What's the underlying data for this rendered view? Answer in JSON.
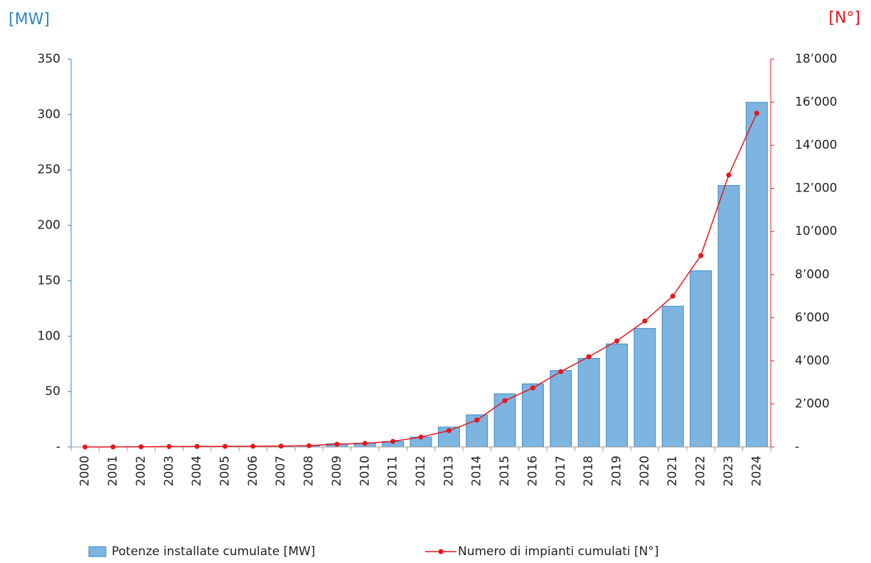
{
  "chart_data": {
    "type": "bar_line",
    "y_label": "[MW]",
    "y2_label": "[N°]",
    "categories": [
      "2000",
      "2001",
      "2002",
      "2003",
      "2004",
      "2005",
      "2006",
      "2007",
      "2008",
      "2009",
      "2010",
      "2011",
      "2012",
      "2013",
      "2014",
      "2015",
      "2016",
      "2017",
      "2018",
      "2019",
      "2020",
      "2021",
      "2022",
      "2023",
      "2024"
    ],
    "series": [
      {
        "name": "Potenze installate cumulate [MW]",
        "type": "bar",
        "color": "#7db4e0",
        "edge_color": "#3f8cc8",
        "values": [
          0,
          0,
          0,
          0,
          0.3,
          0.5,
          0.5,
          0.5,
          1,
          3,
          3.5,
          5,
          9,
          18,
          29,
          48,
          57,
          69,
          80,
          93,
          107,
          127,
          159,
          236,
          311
        ]
      },
      {
        "name": "Numero di impianti cumulati [N°]",
        "type": "line",
        "axis": "y2",
        "color": "#e8141b",
        "values": [
          0,
          5,
          10,
          20,
          25,
          30,
          35,
          40,
          60,
          130,
          170,
          260,
          460,
          760,
          1250,
          2150,
          2740,
          3500,
          4190,
          4920,
          5850,
          7000,
          8880,
          12620,
          15490
        ]
      }
    ],
    "ylim": [
      0,
      350
    ],
    "yticks": [
      {
        "value": 0,
        "label": "-"
      },
      50,
      100,
      150,
      200,
      250,
      300,
      350
    ],
    "y2lim": [
      0,
      18000
    ],
    "y2ticks": [
      {
        "value": 0,
        "label": "-"
      },
      {
        "value": 2000,
        "label": "2’000"
      },
      {
        "value": 4000,
        "label": "4’000"
      },
      {
        "value": 6000,
        "label": "6’000"
      },
      {
        "value": 8000,
        "label": "8’000"
      },
      {
        "value": 10000,
        "label": "10’000"
      },
      {
        "value": 12000,
        "label": "12’000"
      },
      {
        "value": 14000,
        "label": "14’000"
      },
      {
        "value": 16000,
        "label": "16’000"
      },
      {
        "value": 18000,
        "label": "18’000"
      }
    ],
    "y_color": "#2e86c8",
    "y2_color": "#e8141b"
  }
}
